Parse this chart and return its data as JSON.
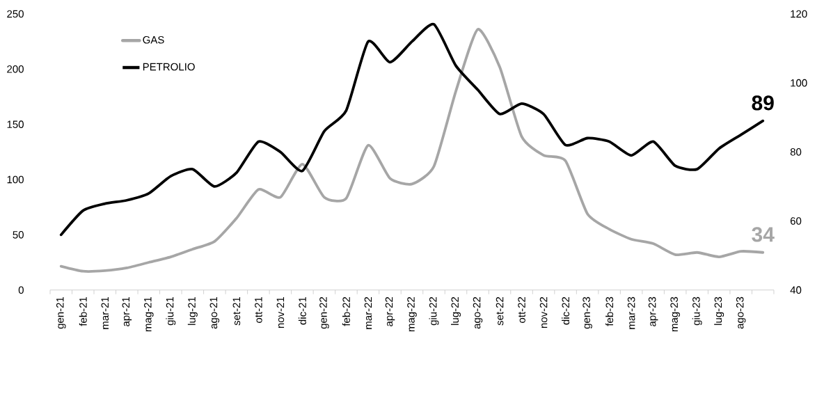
{
  "chart_data": {
    "type": "line",
    "categories": [
      "gen-21",
      "feb-21",
      "mar-21",
      "apr-21",
      "mag-21",
      "giu-21",
      "lug-21",
      "ago-21",
      "set-21",
      "ott-21",
      "nov-21",
      "dic-21",
      "gen-22",
      "feb-22",
      "mar-22",
      "apr-22",
      "mag-22",
      "giu-22",
      "lug-22",
      "ago-22",
      "set-22",
      "ott-22",
      "nov-22",
      "dic-22",
      "gen-23",
      "feb-23",
      "mar-23",
      "apr-23",
      "mag-23",
      "giu-23",
      "lug-23",
      "ago-23",
      null
    ],
    "series": [
      {
        "name": "GAS",
        "color": "#a6a6a6",
        "values": [
          21.5,
          17,
          17.5,
          20,
          25,
          30,
          37,
          44,
          65,
          91,
          84,
          114,
          84,
          83,
          131,
          101,
          96,
          112,
          180,
          236,
          202,
          139,
          122,
          117,
          69,
          55,
          46,
          42,
          32,
          34,
          30,
          35,
          34
        ],
        "value_labels": [
          null,
          null,
          null,
          null,
          null,
          null,
          null,
          null,
          null,
          null,
          null,
          null,
          null,
          null,
          null,
          null,
          null,
          null,
          null,
          null,
          null,
          null,
          null,
          null,
          null,
          null,
          null,
          null,
          null,
          null,
          null,
          null,
          "34"
        ]
      },
      {
        "name": "PETROLIO",
        "color": "#000000",
        "axis": "y2",
        "values": [
          56,
          63,
          65,
          66,
          68,
          73,
          75,
          70,
          74,
          83,
          80,
          74.5,
          86,
          92,
          112,
          106,
          112,
          117,
          105,
          98,
          91,
          94,
          91,
          82,
          84,
          83,
          79,
          83,
          76,
          75,
          81,
          85,
          89
        ],
        "value_labels": [
          null,
          null,
          null,
          null,
          null,
          null,
          null,
          null,
          null,
          null,
          null,
          null,
          null,
          null,
          null,
          null,
          null,
          null,
          null,
          null,
          null,
          null,
          null,
          null,
          null,
          null,
          null,
          null,
          null,
          null,
          null,
          null,
          "89"
        ]
      }
    ],
    "ylim": [
      0,
      250
    ],
    "yticks": [
      0,
      50,
      100,
      150,
      200,
      250
    ],
    "y2lim": [
      40,
      120
    ],
    "y2ticks": [
      40,
      60,
      80,
      100,
      120
    ],
    "legend": "top left",
    "grid": false
  }
}
